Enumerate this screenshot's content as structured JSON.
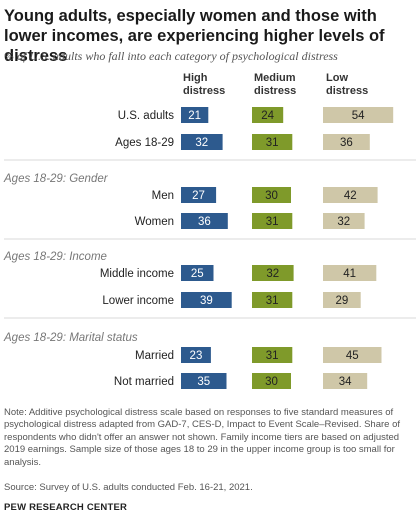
{
  "title": "Young adults, especially women and those with lower incomes, are experiencing higher levels of distress",
  "subtitle": "% of U.S. adults who fall into each category of psychological distress",
  "columns": [
    {
      "key": "high",
      "label_line1": "High",
      "label_line2": "distress",
      "color": "#2d5a8e"
    },
    {
      "key": "medium",
      "label_line1": "Medium",
      "label_line2": "distress",
      "color": "#7f9a2a"
    },
    {
      "key": "low",
      "label_line1": "Low",
      "label_line2": "distress",
      "color": "#cfc7a8"
    }
  ],
  "chart_data": {
    "type": "bar",
    "layout": "small-multiple horizontal bars, three columns",
    "series_names": [
      "High distress",
      "Medium distress",
      "Low distress"
    ],
    "groups": [
      {
        "heading": "",
        "rows": [
          {
            "label": "U.S. adults",
            "values": [
              21,
              24,
              54
            ]
          },
          {
            "label": "Ages 18-29",
            "values": [
              32,
              31,
              36
            ]
          }
        ]
      },
      {
        "heading": "Ages 18-29: Gender",
        "rows": [
          {
            "label": "Men",
            "values": [
              27,
              30,
              42
            ]
          },
          {
            "label": "Women",
            "values": [
              36,
              31,
              32
            ]
          }
        ]
      },
      {
        "heading": "Ages 18-29: Income",
        "rows": [
          {
            "label": "Middle income",
            "values": [
              25,
              32,
              41
            ]
          },
          {
            "label": "Lower income",
            "values": [
              39,
              31,
              29
            ]
          }
        ]
      },
      {
        "heading": "Ages 18-29: Marital status",
        "rows": [
          {
            "label": "Married",
            "values": [
              23,
              31,
              45
            ]
          },
          {
            "label": "Not married",
            "values": [
              35,
              30,
              34
            ]
          }
        ]
      }
    ]
  },
  "note": "Note: Additive psychological distress scale based on responses to five standard measures of psychological distress adapted from GAD-7, CES-D, Impact to Event Scale–Revised. Share of respondents who didn't offer an answer not shown. Family income tiers are based on adjusted 2019 earnings. Sample size of those ages 18 to 29 in the upper income group is too small for analysis.",
  "source": "Source: Survey of U.S. adults conducted Feb. 16-21, 2021.",
  "brand": "PEW RESEARCH CENTER"
}
